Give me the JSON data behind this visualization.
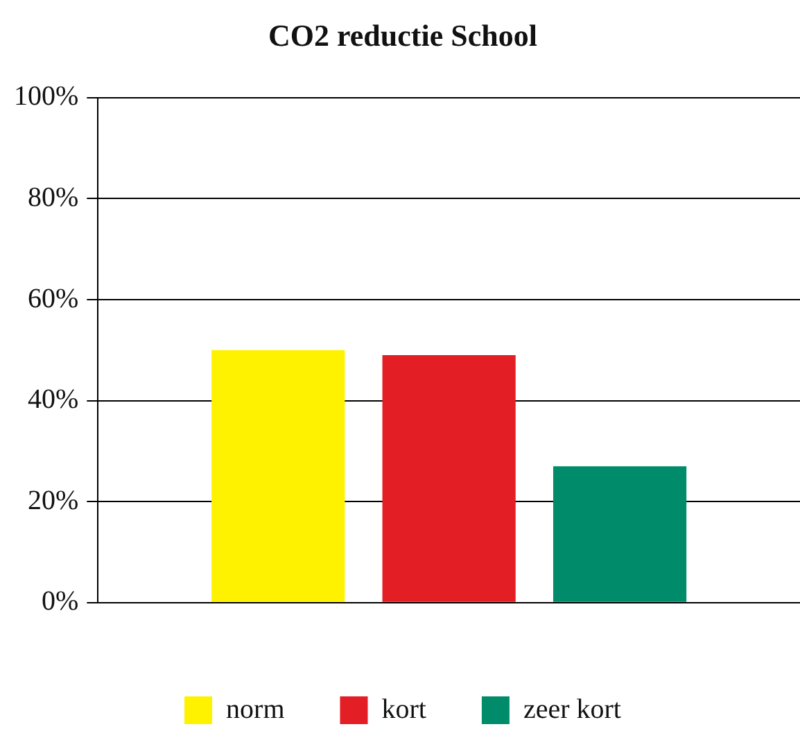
{
  "chart_data": {
    "type": "bar",
    "title": "CO2 reductie School",
    "categories": [
      null
    ],
    "series": [
      {
        "name": "norm",
        "color": "#fff200",
        "values": [
          50
        ]
      },
      {
        "name": "kort",
        "color": "#e31e24",
        "values": [
          49
        ]
      },
      {
        "name": "zeer kort",
        "color": "#008c6a",
        "values": [
          27
        ]
      }
    ],
    "ylim": [
      0,
      100
    ],
    "yticks": [
      {
        "value": 0,
        "label": "0%"
      },
      {
        "value": 20,
        "label": "20%"
      },
      {
        "value": 40,
        "label": "40%"
      },
      {
        "value": 60,
        "label": "60%"
      },
      {
        "value": 80,
        "label": "80%"
      },
      {
        "value": 100,
        "label": "100%"
      }
    ],
    "grid": "y",
    "legend": "bottom"
  }
}
